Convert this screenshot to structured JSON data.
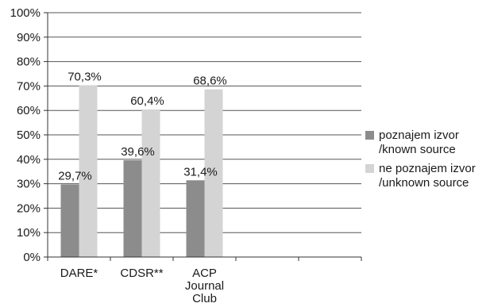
{
  "chart_data": {
    "type": "bar",
    "categories": [
      [
        "DARE*"
      ],
      [
        "CDSR**"
      ],
      [
        "ACP",
        "Journal",
        "Club"
      ],
      [
        ""
      ],
      [
        ""
      ]
    ],
    "series": [
      {
        "name": [
          "poznajem izvor",
          "/known source"
        ],
        "color": "#8c8c8c",
        "values": [
          29.7,
          39.6,
          31.4,
          null,
          null
        ],
        "labels": [
          "29,7%",
          "39,6%",
          "31,4%",
          "",
          ""
        ]
      },
      {
        "name": [
          "ne poznajem izvor",
          "/unknown source"
        ],
        "color": "#d4d4d4",
        "values": [
          70.3,
          60.4,
          68.6,
          null,
          null
        ],
        "labels": [
          "70,3%",
          "60,4%",
          "68,6%",
          "",
          ""
        ]
      }
    ],
    "yticks": [
      "0%",
      "10%",
      "20%",
      "30%",
      "40%",
      "50%",
      "60%",
      "70%",
      "80%",
      "90%",
      "100%"
    ],
    "ylim": [
      0,
      100
    ],
    "grid": true,
    "legend_position": "right"
  }
}
